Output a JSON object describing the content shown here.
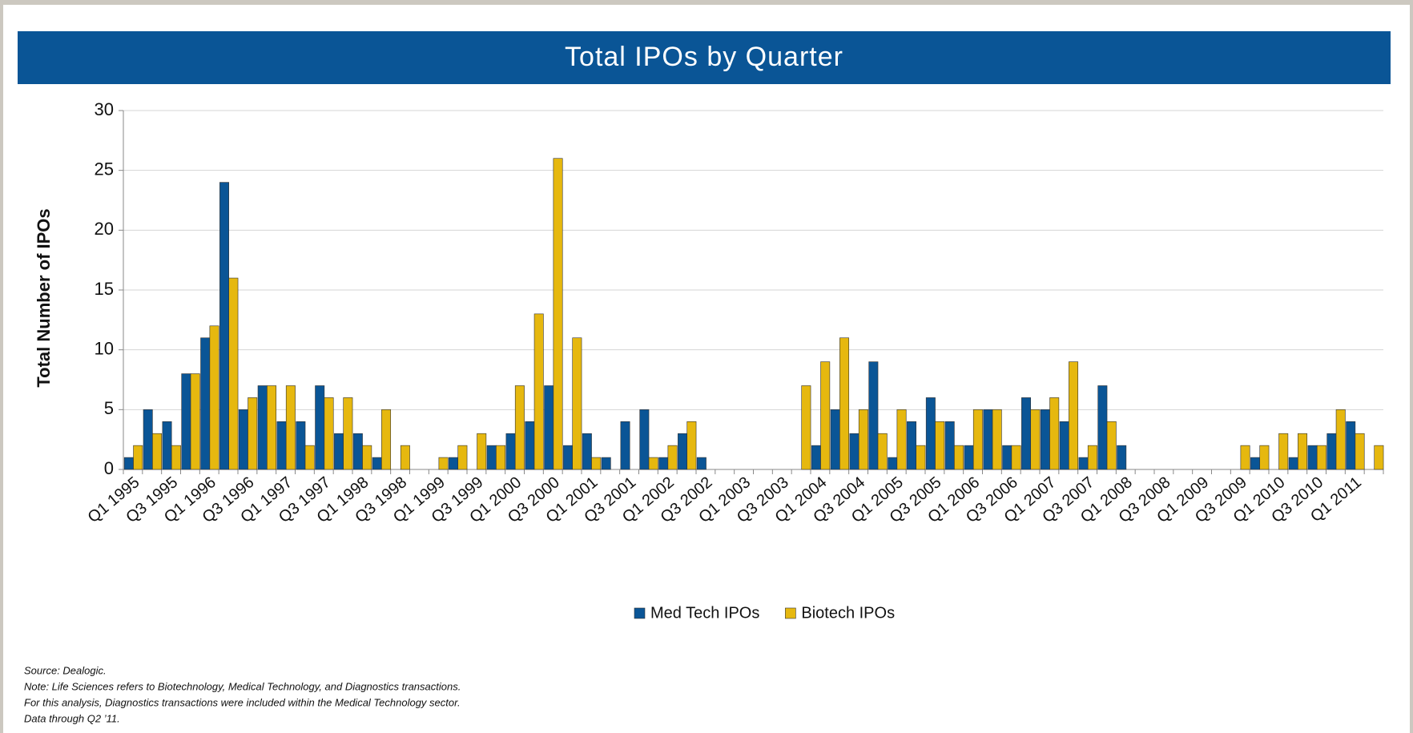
{
  "chart_data": {
    "type": "bar",
    "title": "Total IPOs by Quarter",
    "y_label": "Total Number of IPOs",
    "categories": [
      "Q1 1995",
      null,
      "Q3 1995",
      null,
      "Q1 1996",
      null,
      "Q3 1996",
      null,
      "Q1 1997",
      null,
      "Q3 1997",
      null,
      "Q1 1998",
      null,
      "Q3 1998",
      null,
      "Q1 1999",
      null,
      "Q3 1999",
      null,
      "Q1 2000",
      null,
      "Q3 2000",
      null,
      "Q1 2001",
      null,
      "Q3 2001",
      null,
      "Q1 2002",
      null,
      "Q3 2002",
      null,
      "Q1 2003",
      null,
      "Q3 2003",
      null,
      "Q1 2004",
      null,
      "Q3 2004",
      null,
      "Q1 2005",
      null,
      "Q3 2005",
      null,
      "Q1 2006",
      null,
      "Q3 2006",
      null,
      "Q1 2007",
      null,
      "Q3 2007",
      null,
      "Q1 2008",
      null,
      "Q3 2008",
      null,
      "Q1 2009",
      null,
      "Q3 2009",
      null,
      "Q1 2010",
      null,
      "Q3 2010",
      null,
      "Q1 2011",
      null
    ],
    "series": [
      {
        "name": "Med Tech IPOs",
        "color": "#0a5596",
        "values": [
          1,
          5,
          4,
          8,
          11,
          24,
          5,
          7,
          4,
          4,
          7,
          3,
          3,
          1,
          0,
          0,
          0,
          1,
          0,
          2,
          3,
          4,
          7,
          2,
          3,
          1,
          4,
          5,
          1,
          3,
          1,
          0,
          0,
          0,
          0,
          0,
          2,
          5,
          3,
          9,
          1,
          4,
          6,
          4,
          2,
          5,
          2,
          6,
          5,
          4,
          1,
          7,
          2,
          0,
          0,
          0,
          0,
          0,
          0,
          1,
          0,
          1,
          2,
          3,
          4,
          0
        ]
      },
      {
        "name": "Biotech IPOs",
        "color": "#e6b80f",
        "values": [
          2,
          3,
          2,
          8,
          12,
          16,
          6,
          7,
          7,
          2,
          6,
          6,
          2,
          5,
          2,
          0,
          1,
          2,
          3,
          2,
          7,
          13,
          26,
          11,
          1,
          0,
          0,
          1,
          2,
          4,
          0,
          0,
          0,
          0,
          0,
          7,
          9,
          11,
          5,
          3,
          5,
          2,
          4,
          2,
          5,
          5,
          2,
          5,
          6,
          9,
          2,
          4,
          0,
          0,
          0,
          0,
          0,
          0,
          2,
          2,
          3,
          3,
          2,
          5,
          3,
          2
        ]
      }
    ],
    "ylim": [
      0,
      30
    ],
    "yticks": [
      0,
      5,
      10,
      15,
      20,
      25,
      30
    ],
    "grid": true,
    "legend": "bottom",
    "notes": [
      "Source: Dealogic.",
      "Note: Life Sciences refers to Biotechnology, Medical Technology, and Diagnostics transactions.",
      "For this analysis, Diagnostics transactions were included within the Medical Technology sector.",
      "Data through Q2 ’11."
    ]
  }
}
